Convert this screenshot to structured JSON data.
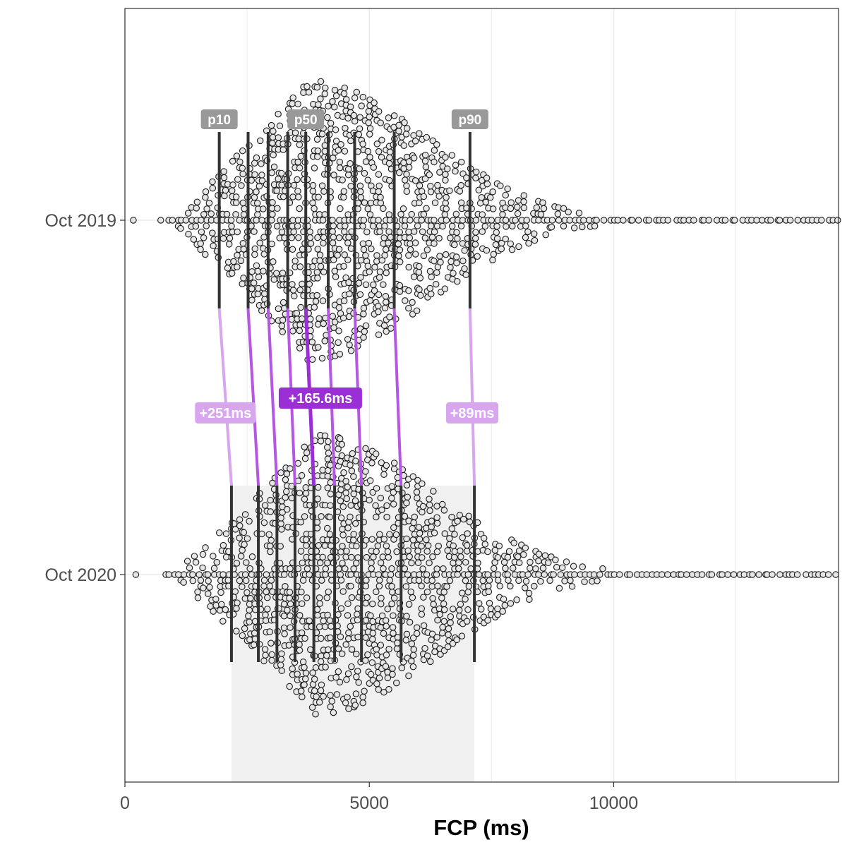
{
  "colors": {
    "background": "#ffffff",
    "panel_border": "#333333",
    "grid": "#ebebeb",
    "iqr_band": "#f0f0f0",
    "point_fill": "#e6e6e6",
    "point_stroke": "#1a1a1a",
    "percentile_line": "#333333",
    "percentile_label_bg": "#999999",
    "delta_median": "#9a2fd6",
    "delta_mid": "#b557e3",
    "delta_light": "#d7a6ef"
  },
  "chart_data": {
    "type": "scatter",
    "subtype": "beeswarm",
    "xlabel": "FCP (ms)",
    "ylabel": "",
    "xlim": [
      0,
      14600
    ],
    "x_ticks": [
      0,
      5000,
      10000
    ],
    "x_tick_labels": [
      "0",
      "5000",
      "10000"
    ],
    "x_minor_grid": [
      2500,
      7500,
      12500
    ],
    "grid": true,
    "categories": [
      "Oct 2019",
      "Oct 2020"
    ],
    "series": [
      {
        "name": "Oct 2019",
        "percentiles": [
          {
            "p": 10,
            "value": 1930
          },
          {
            "p": 20,
            "value": 2520
          },
          {
            "p": 30,
            "value": 2930
          },
          {
            "p": 40,
            "value": 3330
          },
          {
            "p": 50,
            "value": 3700
          },
          {
            "p": 60,
            "value": 4160
          },
          {
            "p": 70,
            "value": 4700
          },
          {
            "p": 80,
            "value": 5510
          },
          {
            "p": 90,
            "value": 7060
          }
        ],
        "range": [
          750,
          14600
        ]
      },
      {
        "name": "Oct 2020",
        "percentiles": [
          {
            "p": 10,
            "value": 2180
          },
          {
            "p": 20,
            "value": 2730
          },
          {
            "p": 30,
            "value": 3110
          },
          {
            "p": 40,
            "value": 3480
          },
          {
            "p": 50,
            "value": 3865
          },
          {
            "p": 60,
            "value": 4290
          },
          {
            "p": 70,
            "value": 4840
          },
          {
            "p": 80,
            "value": 5650
          },
          {
            "p": 90,
            "value": 7150
          }
        ],
        "range": [
          800,
          14600
        ]
      }
    ],
    "percentile_labels": [
      {
        "text": "p10",
        "p": 10
      },
      {
        "text": "p50",
        "p": 50
      },
      {
        "text": "p90",
        "p": 90
      }
    ],
    "delta_labels": [
      {
        "text": "+251ms",
        "p": 10
      },
      {
        "text": "+165.6ms",
        "p": 50
      },
      {
        "text": "+89ms",
        "p": 90
      }
    ],
    "iqr_band": {
      "series": "Oct 2020",
      "from_p": 10,
      "to_p": 90
    }
  }
}
